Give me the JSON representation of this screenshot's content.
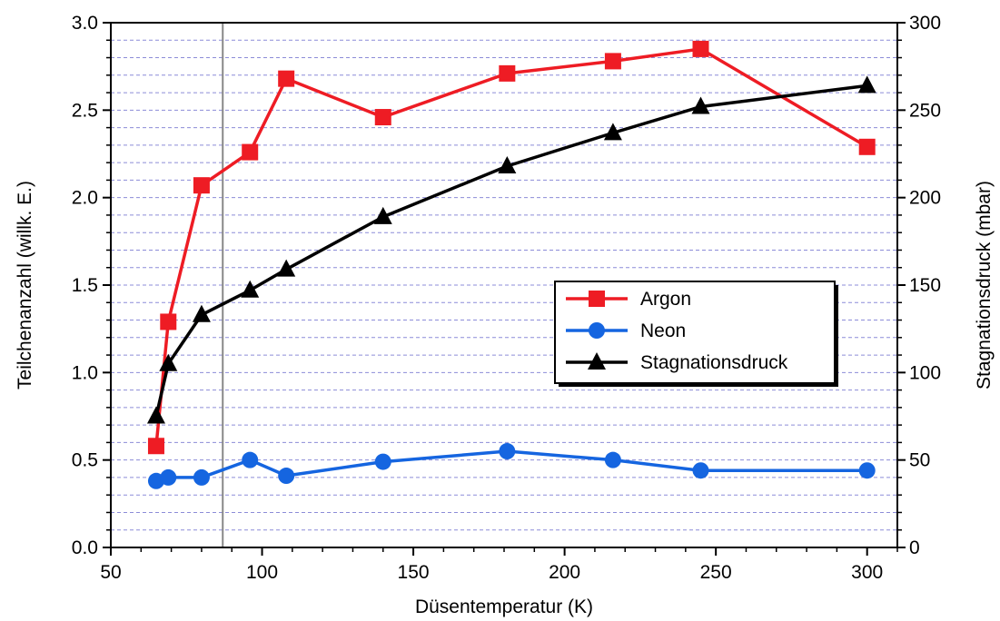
{
  "chart_data": {
    "type": "line",
    "xlabel": "Düsentemperatur (K)",
    "ylabel": "Teilchenanzahl (willk. E.)",
    "y2label": "Stagnationsdruck (mbar)",
    "xlim": [
      50,
      310
    ],
    "ylim": [
      0,
      3.0
    ],
    "y2lim": [
      0,
      300
    ],
    "xticks": [
      "50",
      "100",
      "150",
      "200",
      "250",
      "300"
    ],
    "xtick_values": [
      50,
      100,
      150,
      200,
      250,
      300
    ],
    "yticks": [
      "0.0",
      "0.5",
      "1.0",
      "1.5",
      "2.0",
      "2.5",
      "3.0"
    ],
    "ytick_values": [
      0,
      0.5,
      1.0,
      1.5,
      2.0,
      2.5,
      3.0
    ],
    "y2ticks": [
      "0",
      "50",
      "100",
      "150",
      "200",
      "250",
      "300"
    ],
    "y2tick_values": [
      0,
      50,
      100,
      150,
      200,
      250,
      300
    ],
    "grid": "horizontal dashed",
    "reference_line_x": 87,
    "legend_position": "center-right",
    "series": [
      {
        "name": "Argon",
        "axis": "left",
        "color": "#ee1c24",
        "marker": "square",
        "x": [
          65,
          69,
          80,
          96,
          108,
          140,
          181,
          216,
          245,
          300
        ],
        "y": [
          0.58,
          1.29,
          2.07,
          2.26,
          2.68,
          2.46,
          2.71,
          2.78,
          2.85,
          2.29
        ]
      },
      {
        "name": "Neon",
        "axis": "left",
        "color": "#1565e0",
        "marker": "circle",
        "x": [
          65,
          69,
          80,
          96,
          108,
          140,
          181,
          216,
          245,
          300
        ],
        "y": [
          0.38,
          0.4,
          0.4,
          0.5,
          0.41,
          0.49,
          0.55,
          0.5,
          0.44,
          0.44
        ]
      },
      {
        "name": "Stagnationsdruck",
        "axis": "right",
        "color": "#000000",
        "marker": "triangle",
        "x": [
          65,
          69,
          80,
          96,
          108,
          140,
          181,
          216,
          245,
          300
        ],
        "y": [
          75,
          105,
          133,
          147,
          159,
          189,
          218,
          237,
          252,
          264
        ]
      }
    ]
  }
}
